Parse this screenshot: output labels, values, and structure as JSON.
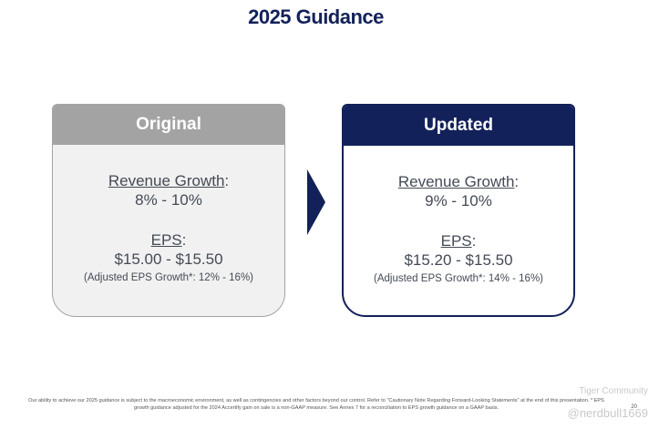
{
  "page_title": "2025 Guidance",
  "original": {
    "header": "Original",
    "revenue_label": "Revenue Growth",
    "revenue_value": "8% - 10%",
    "eps_label": "EPS",
    "eps_value": "$15.00 - $15.50",
    "eps_note": "(Adjusted EPS Growth*: 12% - 16%)"
  },
  "updated": {
    "header": "Updated",
    "revenue_label": "Revenue Growth",
    "revenue_value": "9% - 10%",
    "eps_label": "EPS",
    "eps_value": "$15.20 - $15.50",
    "eps_note": "(Adjusted EPS Growth*: 14% - 16%)"
  },
  "footnote": "Our ability to achieve our 2025 guidance is subject to the macroeconomic environment, as well as contingencies and other factors beyond our control. Refer to \"Cautionary Note Regarding Forward-Looking Statements\" at the end of this presentation. * EPS growth guidance adjusted for the 2024 Accertify gain on sale is a non-GAAP measure. See Annex 7 for a reconciliation to EPS growth guidance on a GAAP basis.",
  "page_number": "20",
  "watermark": {
    "community": "Tiger Community",
    "user": "@nerdbull1669"
  },
  "colors": {
    "navy": "#13215a",
    "gray_header": "#a3a3a3",
    "gray_card": "#f1f1f1"
  }
}
